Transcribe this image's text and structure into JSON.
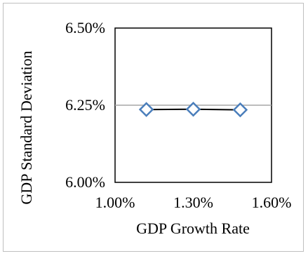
{
  "chart_data": {
    "type": "scatter",
    "x": [
      1.12,
      1.3,
      1.48
    ],
    "y": [
      6.236,
      6.237,
      6.235
    ],
    "series": [
      {
        "values": [
          6.236,
          6.237,
          6.235
        ]
      }
    ],
    "xlabel": "GDP Growth Rate",
    "ylabel": "GDP Standard Deviation",
    "xlim": [
      1.0,
      1.6
    ],
    "ylim": [
      6.0,
      6.5
    ],
    "x_ticks": [
      "1.00%",
      "1.30%",
      "1.60%"
    ],
    "y_ticks": [
      "6.50%",
      "6.25%",
      "6.00%"
    ],
    "grid": "horizontal",
    "marker": "open diamond",
    "line": true,
    "colors": {
      "marker": "#4a7ebb",
      "line": "#000000",
      "grid": "#a6a6a6"
    }
  }
}
